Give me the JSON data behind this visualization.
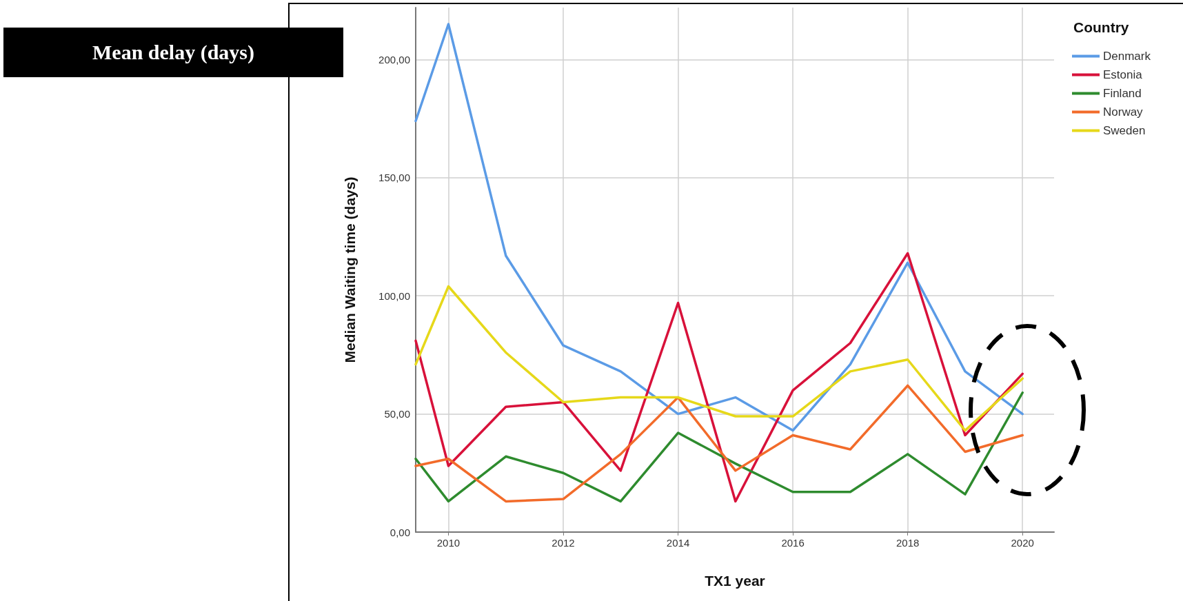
{
  "chart_data": {
    "type": "line",
    "title": "Mean delay (days)",
    "xlabel": "TX1 year",
    "ylabel": "Median Waiting time (days)",
    "legend_title": "Country",
    "x": [
      2009.43,
      2010,
      2011,
      2012,
      2013,
      2014,
      2015,
      2016,
      2017,
      2018,
      2019,
      2020
    ],
    "series": [
      {
        "name": "Denmark",
        "color": "#5b9be6",
        "values": [
          174,
          215,
          117,
          79,
          68,
          50,
          57,
          43,
          71,
          114,
          68,
          50
        ]
      },
      {
        "name": "Estonia",
        "color": "#d8113a",
        "values": [
          81,
          28,
          53,
          55,
          26,
          97,
          13,
          60,
          80,
          118,
          41,
          67
        ]
      },
      {
        "name": "Finland",
        "color": "#2e8b2e",
        "values": [
          31,
          13,
          32,
          25,
          13,
          42,
          29,
          17,
          17,
          33,
          16,
          59
        ]
      },
      {
        "name": "Norway",
        "color": "#f26b2a",
        "values": [
          28,
          31,
          13,
          14,
          33,
          57,
          26,
          41,
          35,
          62,
          34,
          41
        ]
      },
      {
        "name": "Sweden",
        "color": "#e6d81a",
        "values": [
          71,
          104,
          76,
          55,
          57,
          57,
          49,
          49,
          68,
          73,
          43,
          65
        ]
      }
    ],
    "xlim": [
      2009.43,
      2020.55
    ],
    "xticks": [
      2010,
      2012,
      2014,
      2016,
      2018,
      2020
    ],
    "ylim": [
      0,
      222
    ],
    "yticks": [
      {
        "value": 0,
        "label": "0,00"
      },
      {
        "value": 50,
        "label": "50,00"
      },
      {
        "value": 100,
        "label": "100,00"
      },
      {
        "value": 150,
        "label": "150,00"
      },
      {
        "value": 200,
        "label": "200,00"
      }
    ],
    "grid": true,
    "legend": "top right",
    "marker": "none",
    "line_style": "solid"
  }
}
